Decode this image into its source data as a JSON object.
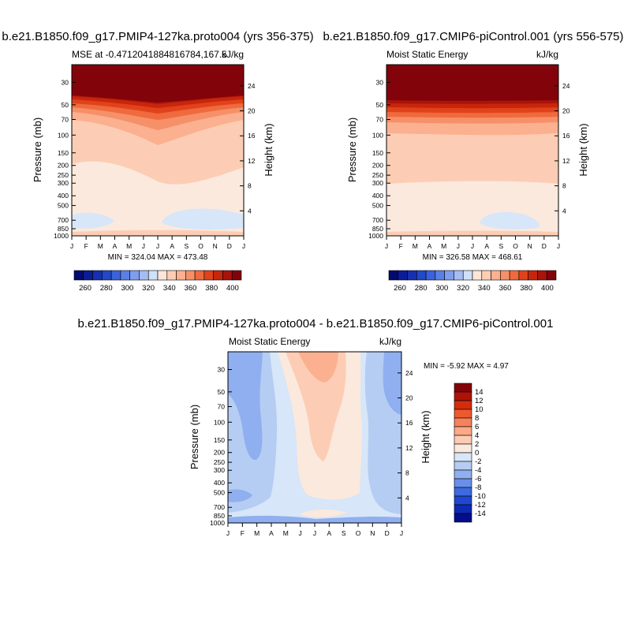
{
  "chart_data": [
    {
      "type": "heatmap",
      "title": "b.e21.B1850.f09_g17.PMIP4-127ka.proto004 (yrs 356-375)",
      "left_label": "MSE at -0.4712041884816784,167.5",
      "units": "kJ/kg",
      "ylabel": "Pressure (mb)",
      "y2label": "Height (km)",
      "x_ticks": [
        "J",
        "F",
        "M",
        "A",
        "M",
        "J",
        "J",
        "A",
        "S",
        "O",
        "N",
        "D",
        "J"
      ],
      "y_ticks": [
        "30",
        "50",
        "70",
        "100",
        "150",
        "200",
        "250",
        "300",
        "400",
        "500",
        "700",
        "850",
        "1000"
      ],
      "y_tick_values": [
        30,
        50,
        70,
        100,
        150,
        200,
        250,
        300,
        400,
        500,
        700,
        850,
        1000
      ],
      "y2_ticks": [
        "24",
        "20",
        "16",
        "12",
        "8",
        "4"
      ],
      "y2_tick_values": [
        24,
        20,
        16,
        12,
        8,
        4
      ],
      "ylim": [
        1000,
        20
      ],
      "stats": "MIN = 324.04 MAX = 473.48",
      "min": 324.04,
      "max": 473.48,
      "colorbar_labels": [
        "260",
        "280",
        "300",
        "320",
        "340",
        "360",
        "380",
        "400"
      ],
      "colorbar_levels": [
        255,
        260,
        265,
        270,
        275,
        280,
        285,
        290,
        295,
        300,
        305,
        310,
        315,
        320,
        325,
        330,
        335,
        340,
        345,
        350,
        355,
        360,
        365,
        370,
        375,
        380,
        385,
        390,
        395,
        400,
        405
      ]
    },
    {
      "type": "heatmap",
      "title": "b.e21.B1850.f09_g17.CMIP6-piControl.001 (yrs 556-575)",
      "left_label": "Moist Static Energy",
      "units": "kJ/kg",
      "ylabel": "Pressure (mb)",
      "y2label": "Height (km)",
      "x_ticks": [
        "J",
        "F",
        "M",
        "A",
        "M",
        "J",
        "J",
        "A",
        "S",
        "O",
        "N",
        "D",
        "J"
      ],
      "y_ticks": [
        "30",
        "50",
        "70",
        "100",
        "150",
        "200",
        "250",
        "300",
        "400",
        "500",
        "700",
        "850",
        "1000"
      ],
      "y_tick_values": [
        30,
        50,
        70,
        100,
        150,
        200,
        250,
        300,
        400,
        500,
        700,
        850,
        1000
      ],
      "y2_ticks": [
        "24",
        "20",
        "16",
        "12",
        "8",
        "4"
      ],
      "y2_tick_values": [
        24,
        20,
        16,
        12,
        8,
        4
      ],
      "ylim": [
        1000,
        20
      ],
      "stats": "MIN = 326.58 MAX = 468.61",
      "min": 326.58,
      "max": 468.61,
      "colorbar_labels": [
        "260",
        "280",
        "300",
        "320",
        "340",
        "360",
        "380",
        "400"
      ],
      "colorbar_levels": [
        255,
        260,
        265,
        270,
        275,
        280,
        285,
        290,
        295,
        300,
        305,
        310,
        315,
        320,
        325,
        330,
        335,
        340,
        345,
        350,
        355,
        360,
        365,
        370,
        375,
        380,
        385,
        390,
        395,
        400,
        405
      ]
    },
    {
      "type": "heatmap",
      "title": "b.e21.B1850.f09_g17.PMIP4-127ka.proto004 - b.e21.B1850.f09_g17.CMIP6-piControl.001",
      "left_label": "Moist Static Energy",
      "units": "kJ/kg",
      "ylabel": "Pressure (mb)",
      "y2label": "Height (km)",
      "x_ticks": [
        "J",
        "F",
        "M",
        "A",
        "M",
        "J",
        "J",
        "A",
        "S",
        "O",
        "N",
        "D",
        "J"
      ],
      "y_ticks": [
        "30",
        "50",
        "70",
        "100",
        "150",
        "200",
        "250",
        "300",
        "400",
        "500",
        "700",
        "850",
        "1000"
      ],
      "y_tick_values": [
        30,
        50,
        70,
        100,
        150,
        200,
        250,
        300,
        400,
        500,
        700,
        850,
        1000
      ],
      "y2_ticks": [
        "24",
        "20",
        "16",
        "12",
        "8",
        "4"
      ],
      "y2_tick_values": [
        24,
        20,
        16,
        12,
        8,
        4
      ],
      "ylim": [
        1000,
        20
      ],
      "stats": "MIN =  -5.92 MAX =   4.97",
      "min": -5.92,
      "max": 4.97,
      "colorbar_labels": [
        "14",
        "12",
        "10",
        "8",
        "6",
        "4",
        "2",
        "0",
        "-2",
        "-4",
        "-6",
        "-8",
        "-10",
        "-12",
        "-14"
      ],
      "colorbar_levels": [
        14,
        12,
        10,
        8,
        6,
        4,
        2,
        0,
        -2,
        -4,
        -6,
        -8,
        -10,
        -12,
        -14
      ]
    }
  ],
  "colors": {
    "seq": [
      "#040a6e",
      "#0b1d96",
      "#1530b0",
      "#2348c8",
      "#3a62dc",
      "#5a80e6",
      "#7e9dee",
      "#a5bdf3",
      "#cfe0f8",
      "#fbe6d8",
      "#fccdb4",
      "#fbb090",
      "#f69068",
      "#ef6a3e",
      "#e0431b",
      "#c8260c",
      "#a8140a",
      "#82030a"
    ],
    "diff": [
      "#82030a",
      "#b01207",
      "#d52c0d",
      "#ec5a2e",
      "#f6825d",
      "#fba987",
      "#fdcbb3",
      "#fbe9dd",
      "#d7e6f8",
      "#b5cdf3",
      "#90aff0",
      "#6a8fea",
      "#3e6ae0",
      "#1f47cf",
      "#0d2ab5",
      "#040d8c"
    ]
  }
}
